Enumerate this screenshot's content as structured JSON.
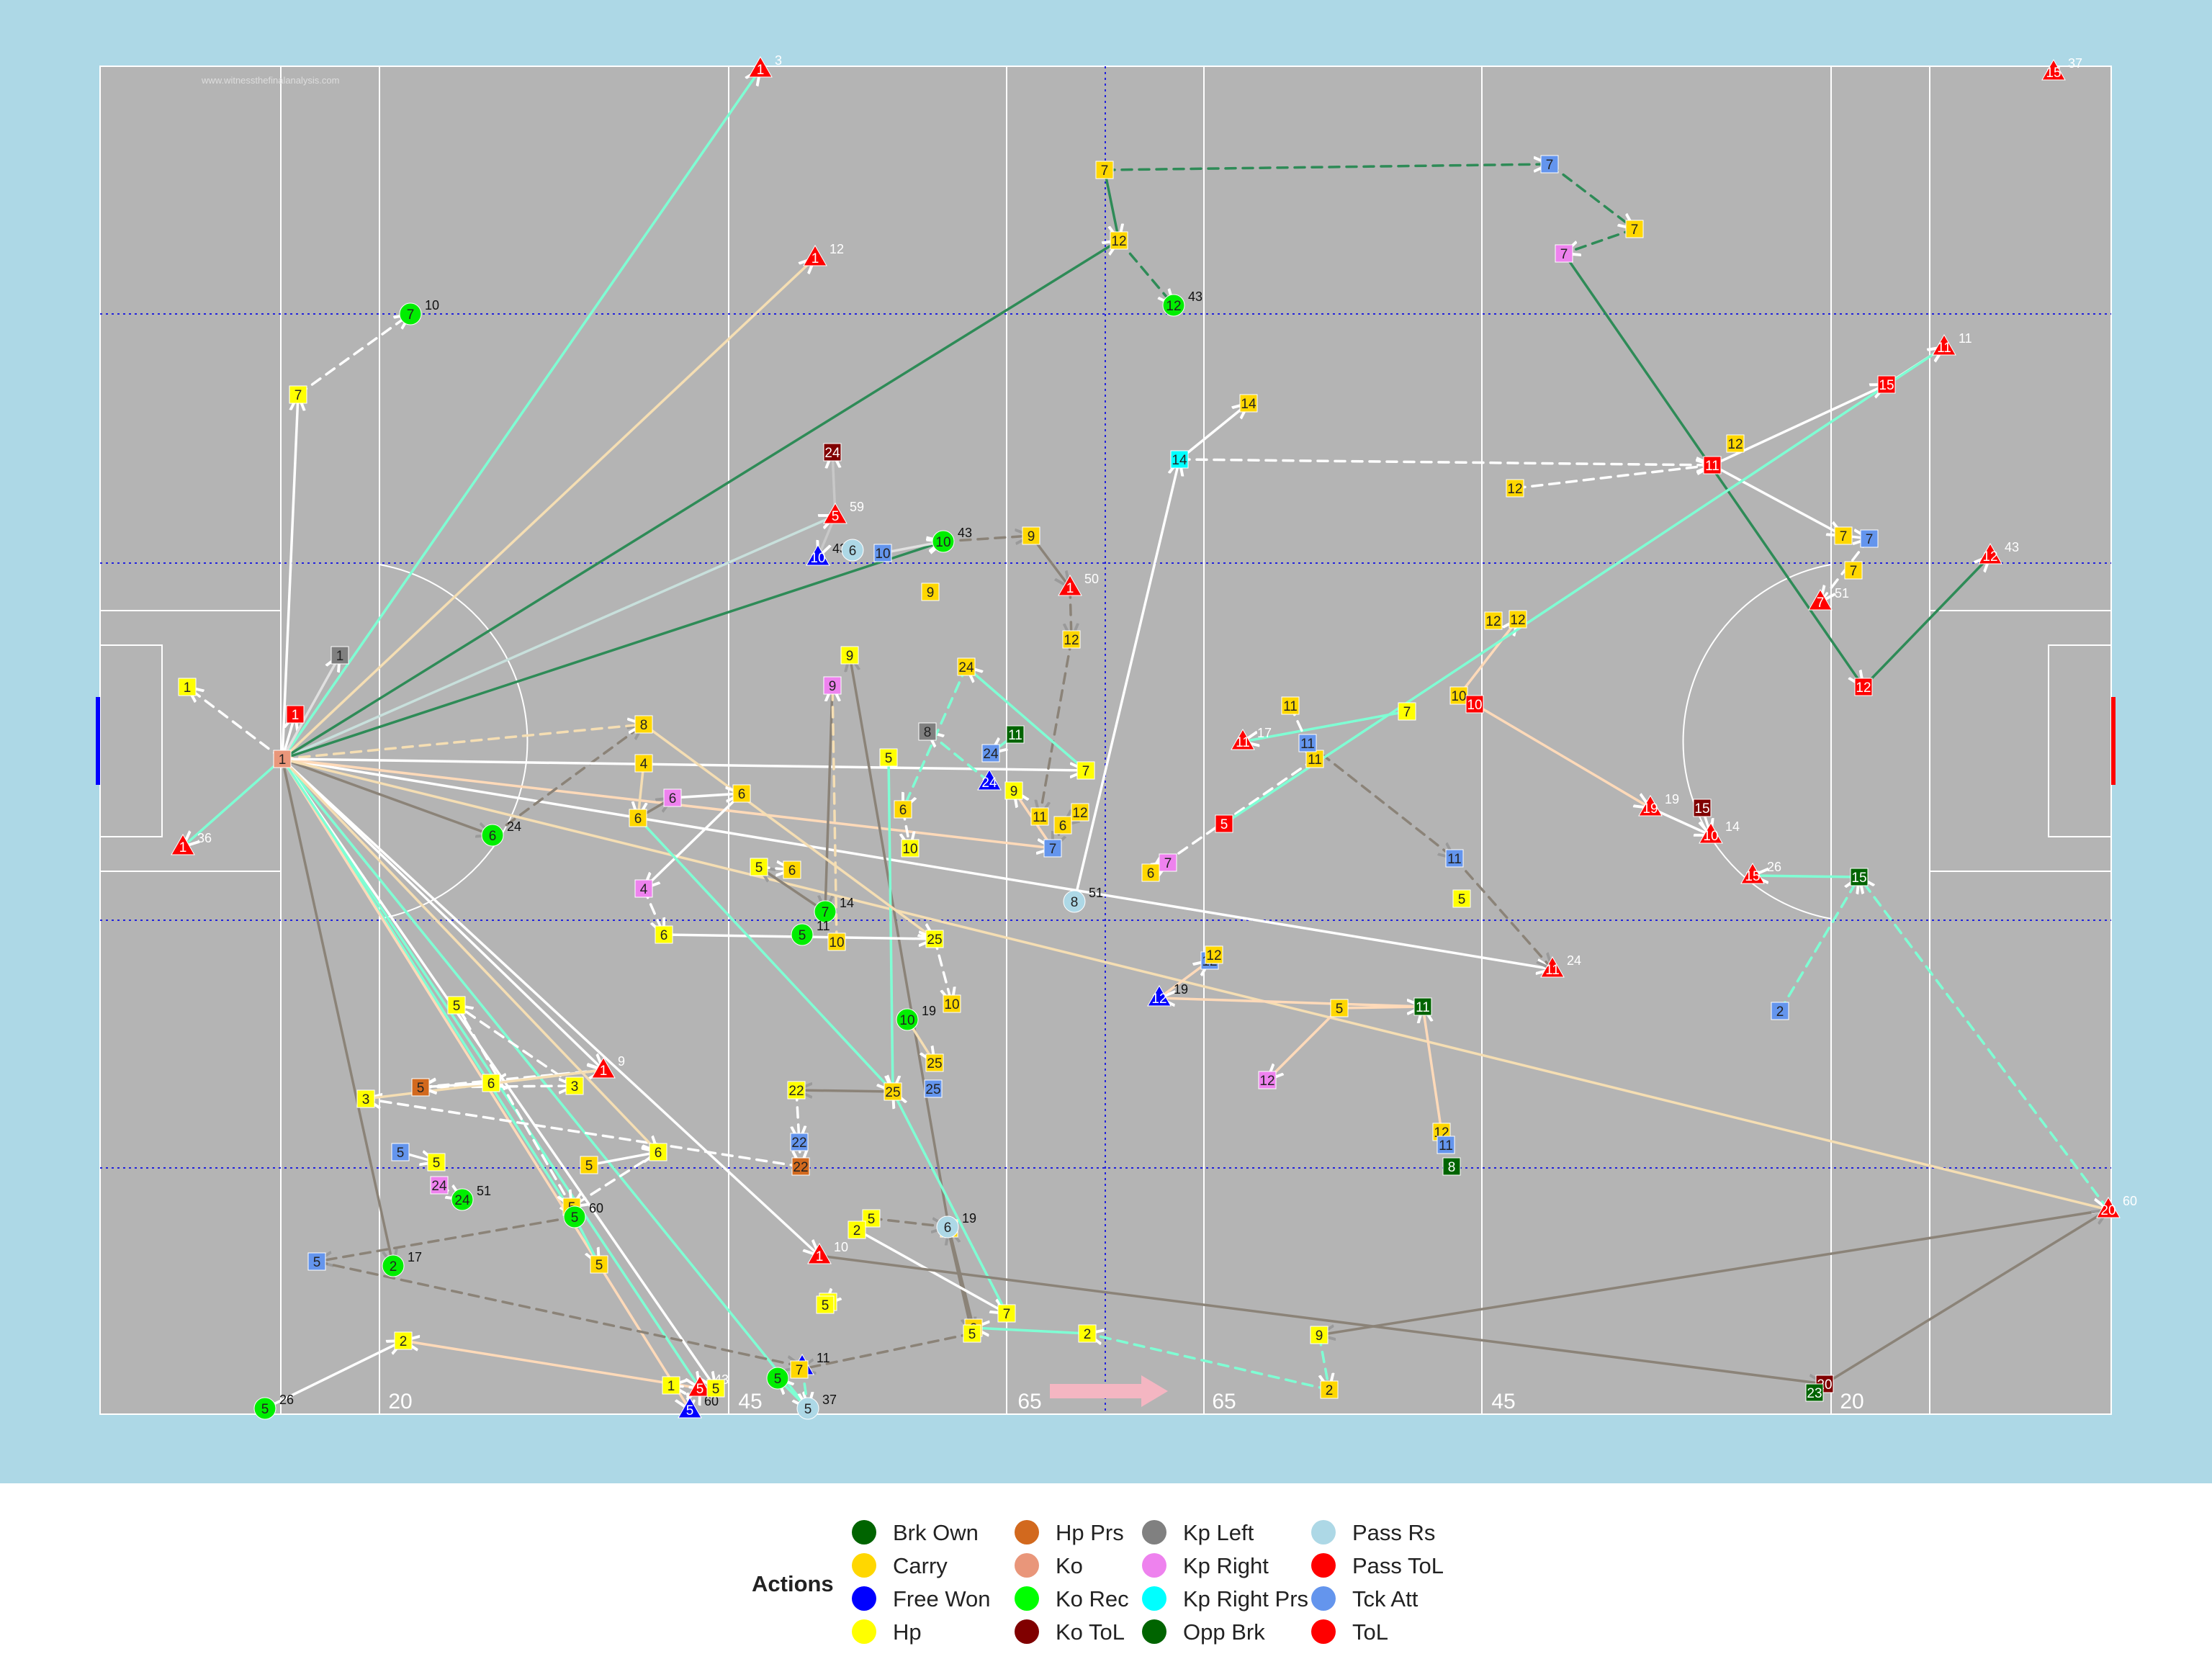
{
  "watermark": "www.witnessthefinalanalysis.com",
  "legend": {
    "title": "Actions",
    "items": [
      {
        "label": "Brk Own",
        "color": "#006400"
      },
      {
        "label": "Carry",
        "color": "#FFD700"
      },
      {
        "label": "Free Won",
        "color": "#0000FF"
      },
      {
        "label": "Hp",
        "color": "#FFFF00"
      },
      {
        "label": "Hp Prs",
        "color": "#D2691E"
      },
      {
        "label": "Ko",
        "color": "#E9967A"
      },
      {
        "label": "Ko Rec",
        "color": "#00FF00"
      },
      {
        "label": "Ko ToL",
        "color": "#800000"
      },
      {
        "label": "Kp Left",
        "color": "#808080"
      },
      {
        "label": "Kp Right",
        "color": "#EE82EE"
      },
      {
        "label": "Kp Right Prs",
        "color": "#00FFFF"
      },
      {
        "label": "Opp Brk",
        "color": "#006400"
      },
      {
        "label": "Pass Rs",
        "color": "#ADD8E6"
      },
      {
        "label": "Pass ToL",
        "color": "#FF0000"
      },
      {
        "label": "Tck Att",
        "color": "#6495ED"
      },
      {
        "label": "ToL",
        "color": "#FF0000"
      }
    ]
  },
  "pitch_labels": [
    "20",
    "45",
    "65",
    "65",
    "45",
    "20"
  ],
  "colors": {
    "background": "#ADD8E6",
    "pitch": "#B4B4B4",
    "direction_arrow": "#F4B6C2",
    "carry_line": "#FFFFFF",
    "pass_line": "#7FFFD4",
    "kick_line": "#8B8378"
  },
  "events": [
    {
      "n": "1",
      "c": "yellow",
      "s": "sq"
    },
    {
      "n": "7",
      "c": "yellow",
      "s": "sq"
    },
    {
      "n": "7",
      "c": "green",
      "s": "ci",
      "t": "10"
    },
    {
      "n": "1",
      "c": "red",
      "s": "tri",
      "t": "3"
    },
    {
      "n": "1",
      "c": "red",
      "s": "tri",
      "t": "12"
    },
    {
      "n": "1",
      "c": "grey",
      "s": "sq"
    },
    {
      "n": "1",
      "c": "red",
      "s": "sq"
    },
    {
      "n": "1",
      "c": "salmon",
      "s": "sq"
    },
    {
      "n": "6",
      "c": "green",
      "s": "ci",
      "t": "24"
    },
    {
      "n": "5",
      "c": "red",
      "s": "tri",
      "t": "59"
    },
    {
      "n": "24",
      "c": "maroon",
      "s": "sq"
    },
    {
      "n": "10",
      "c": "blue",
      "s": "tri",
      "t": "43"
    },
    {
      "n": "6",
      "c": "lightblue",
      "s": "ci"
    },
    {
      "n": "10",
      "c": "cornflower",
      "s": "sq"
    },
    {
      "n": "10",
      "c": "green",
      "s": "ci",
      "t": "43"
    },
    {
      "n": "9",
      "c": "gold",
      "s": "sq"
    },
    {
      "n": "9",
      "c": "gold",
      "s": "sq"
    },
    {
      "n": "1",
      "c": "red",
      "s": "tri",
      "t": "50"
    },
    {
      "n": "12",
      "c": "gold",
      "s": "sq"
    },
    {
      "n": "7",
      "c": "gold",
      "s": "sq"
    },
    {
      "n": "12",
      "c": "gold",
      "s": "sq"
    },
    {
      "n": "12",
      "c": "green",
      "s": "ci",
      "t": "43"
    },
    {
      "n": "7",
      "c": "cornflower",
      "s": "sq"
    },
    {
      "n": "7",
      "c": "gold",
      "s": "sq"
    },
    {
      "n": "7",
      "c": "violet",
      "s": "sq"
    },
    {
      "n": "14",
      "c": "gold",
      "s": "sq"
    },
    {
      "n": "14",
      "c": "cyan",
      "s": "sq"
    },
    {
      "n": "12",
      "c": "gold",
      "s": "sq"
    },
    {
      "n": "12",
      "c": "gold",
      "s": "sq"
    },
    {
      "n": "11",
      "c": "red",
      "s": "sq"
    },
    {
      "n": "15",
      "c": "red",
      "s": "sq"
    },
    {
      "n": "11",
      "c": "red",
      "s": "tri",
      "t": "11"
    },
    {
      "n": "15",
      "c": "red",
      "s": "tri",
      "t": "37"
    },
    {
      "n": "7",
      "c": "gold",
      "s": "sq"
    },
    {
      "n": "7",
      "c": "cornflower",
      "s": "sq"
    },
    {
      "n": "7",
      "c": "gold",
      "s": "sq"
    },
    {
      "n": "7",
      "c": "red",
      "s": "tri",
      "t": "51"
    },
    {
      "n": "12",
      "c": "red",
      "s": "sq"
    },
    {
      "n": "12",
      "c": "red",
      "s": "tri",
      "t": "43"
    },
    {
      "n": "12",
      "c": "gold",
      "s": "sq"
    },
    {
      "n": "12",
      "c": "gold",
      "s": "sq"
    },
    {
      "n": "10",
      "c": "gold",
      "s": "sq"
    },
    {
      "n": "10",
      "c": "red",
      "s": "sq"
    },
    {
      "n": "7",
      "c": "yellow",
      "s": "sq"
    },
    {
      "n": "11",
      "c": "gold",
      "s": "sq"
    },
    {
      "n": "11",
      "c": "gold",
      "s": "sq"
    },
    {
      "n": "11",
      "c": "cornflower",
      "s": "sq"
    },
    {
      "n": "11",
      "c": "red",
      "s": "tri",
      "t": "17"
    },
    {
      "n": "11",
      "c": "cornflower",
      "s": "sq"
    },
    {
      "n": "5",
      "c": "yellow",
      "s": "sq"
    },
    {
      "n": "11",
      "c": "red",
      "s": "tri",
      "t": "24"
    },
    {
      "n": "19",
      "c": "red",
      "s": "tri",
      "t": "19"
    },
    {
      "n": "15",
      "c": "maroon",
      "s": "sq"
    },
    {
      "n": "10",
      "c": "red",
      "s": "tri",
      "t": "14"
    },
    {
      "n": "15",
      "c": "red",
      "s": "tri",
      "t": "26"
    },
    {
      "n": "15",
      "c": "darkgreen",
      "s": "sq"
    },
    {
      "n": "2",
      "c": "cornflower",
      "s": "sq"
    },
    {
      "n": "20",
      "c": "red",
      "s": "tri",
      "t": "60"
    },
    {
      "n": "20",
      "c": "maroon",
      "s": "sq"
    },
    {
      "n": "23",
      "c": "darkgreen",
      "s": "sq"
    },
    {
      "n": "2",
      "c": "gold",
      "s": "sq"
    },
    {
      "n": "9",
      "c": "yellow",
      "s": "sq"
    },
    {
      "n": "2",
      "c": "yellow",
      "s": "sq"
    },
    {
      "n": "2",
      "c": "gold",
      "s": "sq"
    },
    {
      "n": "7",
      "c": "gold",
      "s": "sq"
    },
    {
      "n": "12",
      "c": "violet",
      "s": "sq"
    },
    {
      "n": "5",
      "c": "gold",
      "s": "sq"
    },
    {
      "n": "11",
      "c": "darkgreen",
      "s": "sq"
    },
    {
      "n": "12",
      "c": "gold",
      "s": "sq"
    },
    {
      "n": "11",
      "c": "cornflower",
      "s": "sq"
    },
    {
      "n": "8",
      "c": "darkgreen",
      "s": "sq"
    },
    {
      "n": "12",
      "c": "blue",
      "s": "tri",
      "t": "19"
    },
    {
      "n": "12",
      "c": "cornflower",
      "s": "sq"
    },
    {
      "n": "12",
      "c": "gold",
      "s": "sq"
    },
    {
      "n": "8",
      "c": "lightblue",
      "s": "ci",
      "t": "51"
    },
    {
      "n": "7",
      "c": "violet",
      "s": "sq"
    },
    {
      "n": "6",
      "c": "gold",
      "s": "sq"
    },
    {
      "n": "5",
      "c": "red",
      "s": "sq"
    },
    {
      "n": "7",
      "c": "yellow",
      "s": "sq"
    },
    {
      "n": "11",
      "c": "gold",
      "s": "sq"
    },
    {
      "n": "12",
      "c": "gold",
      "s": "sq"
    },
    {
      "n": "6",
      "c": "gold",
      "s": "sq"
    },
    {
      "n": "7",
      "c": "cornflower",
      "s": "sq"
    },
    {
      "n": "9",
      "c": "yellow",
      "s": "sq"
    },
    {
      "n": "24",
      "c": "blue",
      "s": "tri"
    },
    {
      "n": "24",
      "c": "cornflower",
      "s": "sq"
    },
    {
      "n": "11",
      "c": "darkgreen",
      "s": "sq"
    },
    {
      "n": "24",
      "c": "gold",
      "s": "sq"
    },
    {
      "n": "8",
      "c": "grey",
      "s": "sq"
    },
    {
      "n": "5",
      "c": "yellow",
      "s": "sq"
    },
    {
      "n": "6",
      "c": "gold",
      "s": "sq"
    },
    {
      "n": "10",
      "c": "yellow",
      "s": "sq"
    },
    {
      "n": "9",
      "c": "yellow",
      "s": "sq"
    },
    {
      "n": "9",
      "c": "violet",
      "s": "sq"
    },
    {
      "n": "7",
      "c": "green",
      "s": "ci",
      "t": "14"
    },
    {
      "n": "5",
      "c": "green",
      "s": "ci",
      "t": "11"
    },
    {
      "n": "10",
      "c": "gold",
      "s": "sq"
    },
    {
      "n": "5",
      "c": "yellow",
      "s": "sq"
    },
    {
      "n": "6",
      "c": "gold",
      "s": "sq"
    },
    {
      "n": "8",
      "c": "gold",
      "s": "sq"
    },
    {
      "n": "4",
      "c": "gold",
      "s": "sq"
    },
    {
      "n": "6",
      "c": "gold",
      "s": "sq"
    },
    {
      "n": "6",
      "c": "violet",
      "s": "sq"
    },
    {
      "n": "6",
      "c": "gold",
      "s": "sq"
    },
    {
      "n": "4",
      "c": "violet",
      "s": "sq"
    },
    {
      "n": "6",
      "c": "yellow",
      "s": "sq"
    },
    {
      "n": "25",
      "c": "yellow",
      "s": "sq"
    },
    {
      "n": "10",
      "c": "gold",
      "s": "sq"
    },
    {
      "n": "10",
      "c": "green",
      "s": "ci",
      "t": "19"
    },
    {
      "n": "25",
      "c": "gold",
      "s": "sq"
    },
    {
      "n": "25",
      "c": "gold",
      "s": "sq"
    },
    {
      "n": "25",
      "c": "cornflower",
      "s": "sq"
    },
    {
      "n": "22",
      "c": "yellow",
      "s": "sq"
    },
    {
      "n": "22",
      "c": "cornflower",
      "s": "sq"
    },
    {
      "n": "22",
      "c": "chocolate",
      "s": "sq"
    },
    {
      "n": "3",
      "c": "yellow",
      "s": "sq"
    },
    {
      "n": "1",
      "c": "red",
      "s": "tri",
      "t": "9"
    },
    {
      "n": "6",
      "c": "yellow",
      "s": "sq"
    },
    {
      "n": "5",
      "c": "chocolate",
      "s": "sq"
    },
    {
      "n": "3",
      "c": "yellow",
      "s": "sq"
    },
    {
      "n": "5",
      "c": "yellow",
      "s": "sq"
    },
    {
      "n": "5",
      "c": "cornflower",
      "s": "sq"
    },
    {
      "n": "5",
      "c": "yellow",
      "s": "sq"
    },
    {
      "n": "24",
      "c": "violet",
      "s": "sq"
    },
    {
      "n": "24",
      "c": "green",
      "s": "ci",
      "t": "51"
    },
    {
      "n": "5",
      "c": "gold",
      "s": "sq"
    },
    {
      "n": "6",
      "c": "yellow",
      "s": "sq"
    },
    {
      "n": "5",
      "c": "gold",
      "s": "sq"
    },
    {
      "n": "5",
      "c": "green",
      "s": "ci",
      "t": "60"
    },
    {
      "n": "5",
      "c": "gold",
      "s": "sq"
    },
    {
      "n": "5",
      "c": "cornflower",
      "s": "sq"
    },
    {
      "n": "2",
      "c": "green",
      "s": "ci",
      "t": "17"
    },
    {
      "n": "2",
      "c": "yellow",
      "s": "sq"
    },
    {
      "n": "5",
      "c": "green",
      "s": "ci",
      "t": "26"
    },
    {
      "n": "1",
      "c": "red",
      "s": "tri",
      "t": "36"
    },
    {
      "n": "1",
      "c": "yellow",
      "s": "sq"
    },
    {
      "n": "5",
      "c": "blue",
      "s": "tri",
      "t": "60"
    },
    {
      "n": "5",
      "c": "red",
      "s": "tri",
      "t": "43"
    },
    {
      "n": "5",
      "c": "yellow",
      "s": "sq"
    },
    {
      "n": "5",
      "c": "green",
      "s": "ci",
      "t": "37"
    },
    {
      "n": "5",
      "c": "blue",
      "s": "tri",
      "t": "11"
    },
    {
      "n": "5",
      "c": "lightblue",
      "s": "ci",
      "t": "37"
    },
    {
      "n": "1",
      "c": "red",
      "s": "tri",
      "t": "10"
    },
    {
      "n": "5",
      "c": "yellow",
      "s": "sq"
    },
    {
      "n": "5",
      "c": "yellow",
      "s": "sq"
    },
    {
      "n": "5",
      "c": "yellow",
      "s": "sq"
    },
    {
      "n": "6",
      "c": "lightblue",
      "s": "ci",
      "t": "19"
    },
    {
      "n": "5",
      "c": "yellow",
      "s": "sq"
    },
    {
      "n": "7",
      "c": "yellow",
      "s": "sq"
    },
    {
      "n": "2",
      "c": "yellow",
      "s": "sq"
    },
    {
      "n": "7",
      "c": "gold",
      "s": "sq"
    },
    {
      "n": "19",
      "c": "lightblue",
      "s": "ci",
      "t": "19"
    },
    {
      "n": "60",
      "c": "lightblue",
      "s": "ci"
    }
  ]
}
